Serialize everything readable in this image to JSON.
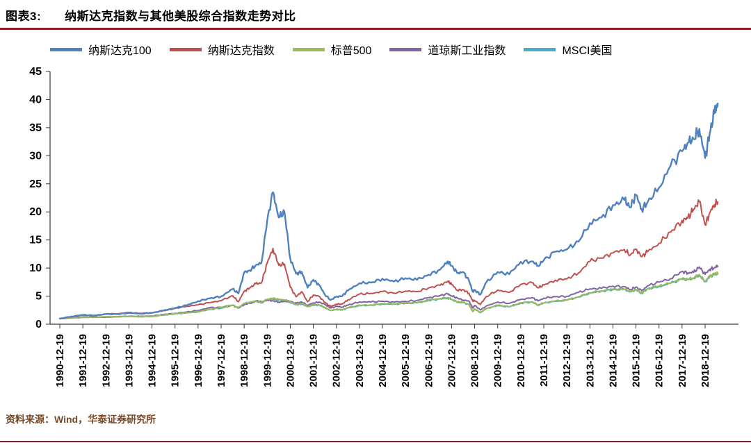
{
  "page": {
    "header": {
      "label": "图表3:",
      "title": "纳斯达克指数与其他美股综合指数走势对比"
    },
    "footer": {
      "source": "资料来源：Wind，华泰证券研究所"
    }
  },
  "colors": {
    "rule": "#8f1d22",
    "source_text": "#7a4a28",
    "axis": "#333333"
  },
  "chart_data": {
    "type": "line",
    "title": "纳斯达克指数与其他美股综合指数走势对比",
    "xlabel": "",
    "ylabel": "",
    "ylim": [
      0,
      45
    ],
    "yticks": [
      0,
      5,
      10,
      15,
      20,
      25,
      30,
      35,
      40,
      45
    ],
    "grid": false,
    "legend_position": "top",
    "x_tick_labels": [
      "1990-12-19",
      "1991-12-19",
      "1992-12-19",
      "1993-12-19",
      "1994-12-19",
      "1995-12-19",
      "1996-12-19",
      "1997-12-19",
      "1998-12-19",
      "1999-12-19",
      "2000-12-19",
      "2001-12-19",
      "2002-12-19",
      "2003-12-19",
      "2004-12-19",
      "2005-12-19",
      "2006-12-19",
      "2007-12-19",
      "2008-12-19",
      "2009-12-19",
      "2010-12-19",
      "2011-12-19",
      "2012-12-19",
      "2013-12-19",
      "2014-12-19",
      "2015-12-19",
      "2016-12-19",
      "2017-12-19",
      "2018-12-19"
    ],
    "x_years_after_start": [
      0,
      0.5,
      1,
      1.5,
      2,
      2.5,
      3,
      3.5,
      4,
      4.5,
      5,
      5.5,
      6,
      6.5,
      7,
      7.5,
      7.75,
      8,
      8.25,
      8.5,
      8.75,
      9,
      9.25,
      9.5,
      9.75,
      10,
      10.25,
      10.5,
      10.75,
      11,
      11.25,
      11.5,
      11.75,
      12,
      12.25,
      12.5,
      13,
      13.5,
      14,
      14.5,
      15,
      15.5,
      16,
      16.5,
      16.83,
      17,
      17.25,
      17.5,
      17.75,
      17.92,
      18,
      18.25,
      18.5,
      19,
      19.5,
      20,
      20.5,
      20.75,
      21,
      21.5,
      22,
      22.5,
      23,
      23.5,
      24,
      24.5,
      24.75,
      25,
      25.25,
      25.5,
      26,
      26.5,
      27,
      27.25,
      27.5,
      27.75,
      28,
      28.2,
      28.4,
      28.55
    ],
    "series": [
      {
        "id": "nasdaq-100",
        "name": "纳斯达克100",
        "color": "#4F81BD",
        "values": [
          1.0,
          1.37,
          1.65,
          1.55,
          1.8,
          1.8,
          2.0,
          1.88,
          2.02,
          2.43,
          2.88,
          3.36,
          4.1,
          4.6,
          4.95,
          6.25,
          5.5,
          9.18,
          9.6,
          10.5,
          10.9,
          18.5,
          23.5,
          19.0,
          20.0,
          11.7,
          9.0,
          9.3,
          6.5,
          7.9,
          7.0,
          5.3,
          4.3,
          4.9,
          5.0,
          6.0,
          7.3,
          7.4,
          8.1,
          7.6,
          8.2,
          7.9,
          8.8,
          9.7,
          11.2,
          10.4,
          9.1,
          9.3,
          7.8,
          5.8,
          6.1,
          5.3,
          7.4,
          9.3,
          8.9,
          11.1,
          11.2,
          10.4,
          11.4,
          12.9,
          13.3,
          14.7,
          18.0,
          19.0,
          21.2,
          22.1,
          20.8,
          23.0,
          20.5,
          21.7,
          24.3,
          28.2,
          30.8,
          32.3,
          33.0,
          34.8,
          29.6,
          34.0,
          37.5,
          39.3
        ]
      },
      {
        "id": "nasdaq-composite",
        "name": "纳斯达克指数",
        "color": "#C0504D",
        "values": [
          1.0,
          1.3,
          1.57,
          1.47,
          1.81,
          1.86,
          2.08,
          1.94,
          2.01,
          2.43,
          2.81,
          3.2,
          3.45,
          3.84,
          4.2,
          5.07,
          4.0,
          5.86,
          6.5,
          7.19,
          7.35,
          10.9,
          13.5,
          10.5,
          10.7,
          6.61,
          4.9,
          5.8,
          4.0,
          5.21,
          4.95,
          3.91,
          3.13,
          3.57,
          3.58,
          4.34,
          5.36,
          5.46,
          5.82,
          5.52,
          5.9,
          5.81,
          6.46,
          6.92,
          7.65,
          7.09,
          6.07,
          6.13,
          5.53,
          4.11,
          4.22,
          3.5,
          4.9,
          6.07,
          5.65,
          7.09,
          7.37,
          6.48,
          6.97,
          7.85,
          8.07,
          9.1,
          11.2,
          11.8,
          12.7,
          13.3,
          12.3,
          13.4,
          12.0,
          12.9,
          14.4,
          16.4,
          18.5,
          18.9,
          20.5,
          21.8,
          17.7,
          19.8,
          21.3,
          21.8
        ]
      },
      {
        "id": "sp500",
        "name": "标普500",
        "color": "#9BBB59",
        "values": [
          1.0,
          1.15,
          1.26,
          1.24,
          1.32,
          1.36,
          1.41,
          1.35,
          1.39,
          1.65,
          1.87,
          2.04,
          2.25,
          2.69,
          2.94,
          3.44,
          2.91,
          3.72,
          3.9,
          4.16,
          3.88,
          4.45,
          4.63,
          4.4,
          4.34,
          4.0,
          3.52,
          3.7,
          3.15,
          3.48,
          3.47,
          3.0,
          2.47,
          2.67,
          2.58,
          2.95,
          3.37,
          3.44,
          3.67,
          3.62,
          3.78,
          3.85,
          4.3,
          4.56,
          4.74,
          4.45,
          4.0,
          3.88,
          3.54,
          2.28,
          2.74,
          2.1,
          2.79,
          3.38,
          3.12,
          3.81,
          4.0,
          3.43,
          3.81,
          4.13,
          4.32,
          4.87,
          5.6,
          5.94,
          6.24,
          6.25,
          5.8,
          6.19,
          5.55,
          6.36,
          6.78,
          7.33,
          8.1,
          8.0,
          8.24,
          8.83,
          7.6,
          8.55,
          8.9,
          9.05
        ]
      },
      {
        "id": "dow-jones",
        "name": "道琼斯工业指数",
        "color": "#8064A2",
        "values": [
          1.0,
          1.13,
          1.2,
          1.26,
          1.25,
          1.33,
          1.43,
          1.39,
          1.46,
          1.73,
          1.94,
          2.16,
          2.45,
          2.93,
          3.0,
          3.4,
          2.9,
          3.49,
          3.73,
          4.18,
          3.94,
          4.36,
          4.14,
          3.96,
          4.04,
          4.1,
          3.71,
          3.97,
          3.37,
          3.8,
          3.94,
          3.51,
          2.88,
          3.17,
          3.05,
          3.41,
          3.97,
          3.95,
          4.09,
          3.92,
          4.07,
          4.23,
          4.73,
          5.1,
          5.38,
          5.04,
          4.65,
          4.31,
          4.12,
          2.87,
          3.33,
          2.55,
          3.21,
          3.96,
          3.71,
          4.4,
          4.73,
          4.14,
          4.64,
          4.9,
          4.98,
          5.65,
          6.29,
          6.38,
          6.77,
          6.69,
          6.18,
          6.62,
          5.95,
          6.81,
          7.5,
          8.11,
          9.38,
          9.15,
          9.22,
          10.19,
          8.86,
          9.8,
          10.05,
          10.35
        ]
      },
      {
        "id": "msci-usa",
        "name": "MSCI美国",
        "color": "#4BACC6",
        "values": [
          1.0,
          1.14,
          1.25,
          1.23,
          1.3,
          1.34,
          1.39,
          1.33,
          1.37,
          1.62,
          1.83,
          2.0,
          2.2,
          2.63,
          2.87,
          3.35,
          2.85,
          3.64,
          3.8,
          4.05,
          3.8,
          4.33,
          4.45,
          4.3,
          4.25,
          3.9,
          3.45,
          3.62,
          3.1,
          3.4,
          3.4,
          2.95,
          2.43,
          2.62,
          2.53,
          2.9,
          3.3,
          3.38,
          3.6,
          3.56,
          3.72,
          3.8,
          4.23,
          4.5,
          4.67,
          4.38,
          3.94,
          3.83,
          3.5,
          2.25,
          2.7,
          2.07,
          2.75,
          3.33,
          3.08,
          3.76,
          3.95,
          3.39,
          3.76,
          4.08,
          4.28,
          4.83,
          5.55,
          5.9,
          6.18,
          6.2,
          5.75,
          6.14,
          5.5,
          6.3,
          6.72,
          7.28,
          8.05,
          7.95,
          8.18,
          8.75,
          7.54,
          8.48,
          8.83,
          8.98
        ]
      }
    ]
  }
}
